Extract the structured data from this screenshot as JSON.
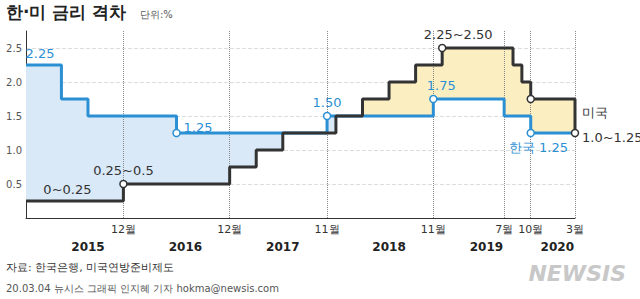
{
  "chart_data": {
    "type": "step",
    "title": "한·미 금리 격차",
    "subtitle": "단위:%",
    "source": "자료: 한국은행, 미국연방준비제도",
    "footer": "20.03.04 뉴시스 그래픽 인지혜 기자 hokma@newsis.com",
    "watermark": "NEWSIS",
    "categories": [
      null,
      null,
      null,
      null,
      null,
      null,
      null,
      null,
      null,
      null,
      null,
      "12월",
      null,
      null,
      null,
      null,
      null,
      null,
      null,
      null,
      null,
      null,
      null,
      "12월",
      null,
      null,
      null,
      null,
      null,
      null,
      null,
      null,
      null,
      null,
      "11월",
      null,
      null,
      null,
      null,
      null,
      null,
      null,
      null,
      null,
      null,
      null,
      "11월",
      null,
      null,
      null,
      null,
      null,
      null,
      null,
      "7월",
      null,
      null,
      "10월",
      null,
      null,
      null,
      null,
      "3월"
    ],
    "year_labels": [
      null,
      null,
      null,
      null,
      null,
      null,
      null,
      "2015",
      null,
      null,
      null,
      null,
      null,
      null,
      null,
      null,
      null,
      null,
      "2016",
      null,
      null,
      null,
      null,
      null,
      null,
      null,
      null,
      null,
      null,
      "2017",
      null,
      null,
      null,
      null,
      null,
      null,
      null,
      null,
      null,
      null,
      null,
      "2018",
      null,
      null,
      null,
      null,
      null,
      null,
      null,
      null,
      null,
      null,
      "2019",
      null,
      null,
      null,
      null,
      null,
      null,
      null,
      "2020",
      null,
      null
    ],
    "series": [
      {
        "name": "한국",
        "color": "#2b8fd3",
        "values": [
          2.25,
          2.25,
          2.25,
          2.25,
          1.75,
          1.75,
          1.75,
          1.5,
          1.5,
          1.5,
          1.5,
          1.5,
          1.5,
          1.5,
          1.5,
          1.5,
          1.5,
          1.25,
          1.25,
          1.25,
          1.25,
          1.25,
          1.25,
          1.25,
          1.25,
          1.25,
          1.25,
          1.25,
          1.25,
          1.25,
          1.25,
          1.25,
          1.25,
          1.25,
          1.5,
          1.5,
          1.5,
          1.5,
          1.5,
          1.5,
          1.5,
          1.5,
          1.5,
          1.5,
          1.5,
          1.5,
          1.75,
          1.75,
          1.75,
          1.75,
          1.75,
          1.75,
          1.75,
          1.75,
          1.5,
          1.5,
          1.5,
          1.25,
          1.25,
          1.25,
          1.25,
          1.25,
          1.25
        ]
      },
      {
        "name": "미국",
        "color": "#333333",
        "values": [
          0.25,
          0.25,
          0.25,
          0.25,
          0.25,
          0.25,
          0.25,
          0.25,
          0.25,
          0.25,
          0.25,
          0.5,
          0.5,
          0.5,
          0.5,
          0.5,
          0.5,
          0.5,
          0.5,
          0.5,
          0.5,
          0.5,
          0.5,
          0.75,
          0.75,
          0.75,
          1.0,
          1.0,
          1.0,
          1.25,
          1.25,
          1.25,
          1.25,
          1.25,
          1.25,
          1.5,
          1.5,
          1.5,
          1.75,
          1.75,
          1.75,
          2.0,
          2.0,
          2.0,
          2.25,
          2.25,
          2.25,
          2.5,
          2.5,
          2.5,
          2.5,
          2.5,
          2.5,
          2.5,
          2.5,
          2.25,
          2.0,
          1.75,
          1.75,
          1.75,
          1.75,
          1.75,
          1.25
        ]
      }
    ],
    "fill_colors": [
      "#d9e9f7",
      "#fbefc2"
    ],
    "annotations": [
      {
        "text": "2.25",
        "series": 0,
        "x": 0,
        "y": 2.25
      },
      {
        "text": "0~0.25",
        "series": 1,
        "x": 4,
        "y": 0.25
      },
      {
        "text": "0.25~0.5",
        "series": 1,
        "x": 11,
        "y": 0.5
      },
      {
        "text": "1.25",
        "series": 0,
        "x": 17,
        "y": 1.25
      },
      {
        "text": "1.50",
        "series": 0,
        "x": 34,
        "y": 1.5
      },
      {
        "text": "1.75",
        "series": 0,
        "x": 46,
        "y": 1.75
      },
      {
        "text": "2.25~2.50",
        "series": 1,
        "x": 47,
        "y": 2.5
      },
      {
        "text": "미국",
        "series": 1,
        "x": 62,
        "y": 1.5
      },
      {
        "text": "1.0~1.25",
        "series": 1,
        "x": 62,
        "y": 1.25
      },
      {
        "text": "한국 1.25",
        "series": 0,
        "x": 62,
        "y": 1.25
      }
    ],
    "highlight_points": [
      {
        "series": 1,
        "x": 11,
        "y": 0.5
      },
      {
        "series": 0,
        "x": 17,
        "y": 1.25
      },
      {
        "series": 0,
        "x": 34,
        "y": 1.5
      },
      {
        "series": 0,
        "x": 46,
        "y": 1.75
      },
      {
        "series": 1,
        "x": 47,
        "y": 2.5
      },
      {
        "series": 1,
        "x": 57,
        "y": 1.75
      },
      {
        "series": 0,
        "x": 57,
        "y": 1.25
      },
      {
        "series": 1,
        "x": 62,
        "y": 1.25
      }
    ],
    "ylim": [
      0,
      2.75
    ],
    "yticks": [
      0.5,
      {
        "value": 1,
        "label": "1.0"
      },
      1.5,
      {
        "value": 2,
        "label": "2.0"
      },
      2.5
    ],
    "grid": true
  }
}
